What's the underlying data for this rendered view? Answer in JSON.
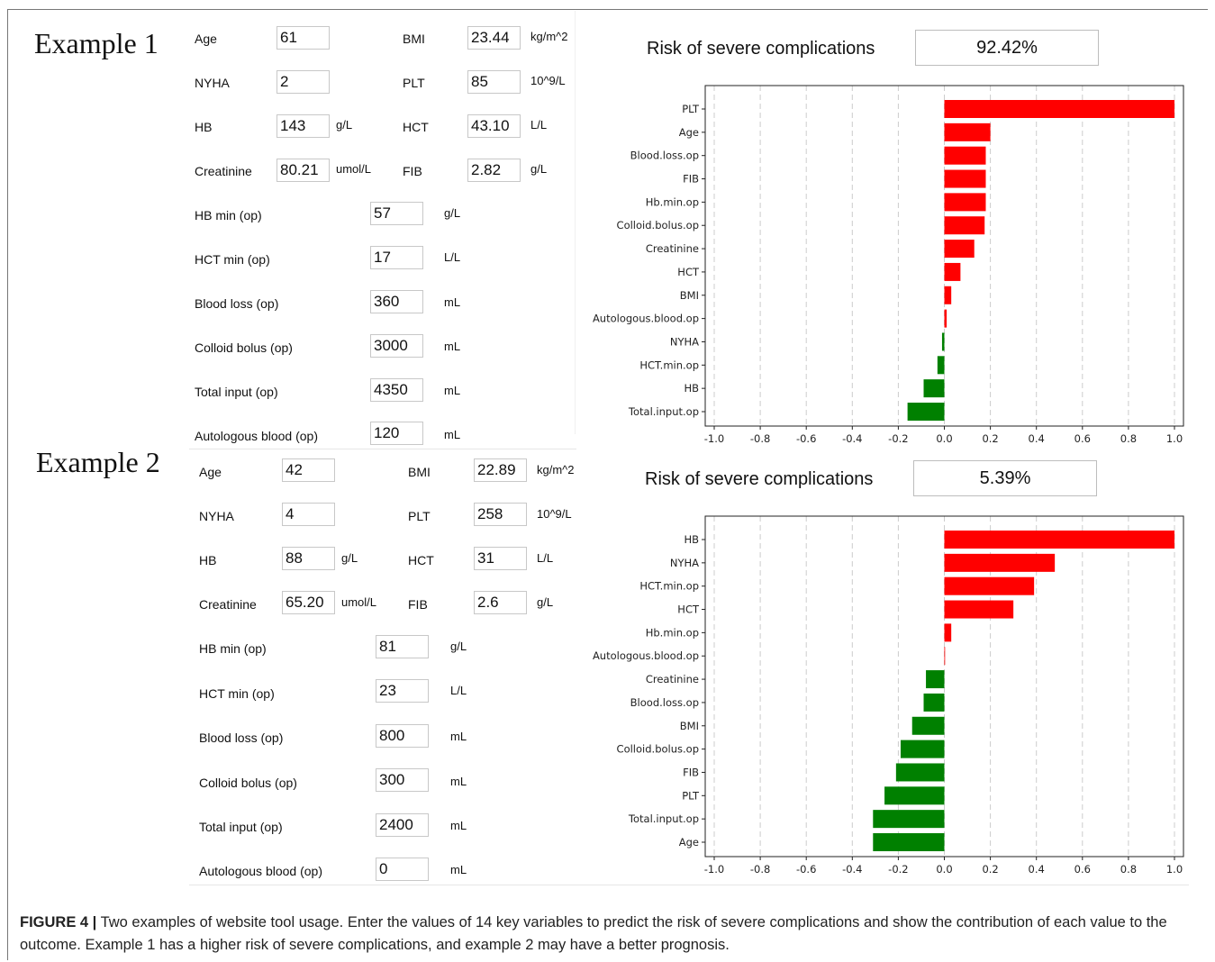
{
  "examples": [
    {
      "title": "Example 1",
      "fields": {
        "age": {
          "label": "Age",
          "value": "61"
        },
        "bmi": {
          "label": "BMI",
          "value": "23.44",
          "unit": "kg/m^2"
        },
        "nyha": {
          "label": "NYHA",
          "value": "2"
        },
        "plt": {
          "label": "PLT",
          "value": "85",
          "unit": "10^9/L"
        },
        "hb": {
          "label": "HB",
          "value": "143",
          "unit": "g/L"
        },
        "hct": {
          "label": "HCT",
          "value": "43.10",
          "unit": "L/L"
        },
        "creatinine": {
          "label": "Creatinine",
          "value": "80.21",
          "unit": "umol/L"
        },
        "fib": {
          "label": "FIB",
          "value": "2.82",
          "unit": "g/L"
        },
        "hb_min": {
          "label": "HB min (op)",
          "value": "57",
          "unit": "g/L"
        },
        "hct_min": {
          "label": "HCT min (op)",
          "value": "17",
          "unit": "L/L"
        },
        "blood_loss": {
          "label": "Blood loss (op)",
          "value": "360",
          "unit": "mL"
        },
        "colloid_bolus": {
          "label": "Colloid bolus (op)",
          "value": "3000",
          "unit": "mL"
        },
        "total_input": {
          "label": "Total input (op)",
          "value": "4350",
          "unit": "mL"
        },
        "autologous_blood": {
          "label": "Autologous blood (op)",
          "value": "120",
          "unit": "mL"
        }
      },
      "risk_label": "Risk of severe complications",
      "risk_value": "92.42%"
    },
    {
      "title": "Example 2",
      "fields": {
        "age": {
          "label": "Age",
          "value": "42"
        },
        "bmi": {
          "label": "BMI",
          "value": "22.89",
          "unit": "kg/m^2"
        },
        "nyha": {
          "label": "NYHA",
          "value": "4"
        },
        "plt": {
          "label": "PLT",
          "value": "258",
          "unit": "10^9/L"
        },
        "hb": {
          "label": "HB",
          "value": "88",
          "unit": "g/L"
        },
        "hct": {
          "label": "HCT",
          "value": "31",
          "unit": "L/L"
        },
        "creatinine": {
          "label": "Creatinine",
          "value": "65.20",
          "unit": "umol/L"
        },
        "fib": {
          "label": "FIB",
          "value": "2.6",
          "unit": "g/L"
        },
        "hb_min": {
          "label": "HB min (op)",
          "value": "81",
          "unit": "g/L"
        },
        "hct_min": {
          "label": "HCT min (op)",
          "value": "23",
          "unit": "L/L"
        },
        "blood_loss": {
          "label": "Blood loss (op)",
          "value": "800",
          "unit": "mL"
        },
        "colloid_bolus": {
          "label": "Colloid bolus (op)",
          "value": "300",
          "unit": "mL"
        },
        "total_input": {
          "label": "Total input (op)",
          "value": "2400",
          "unit": "mL"
        },
        "autologous_blood": {
          "label": "Autologous blood (op)",
          "value": "0",
          "unit": "mL"
        }
      },
      "risk_label": "Risk of severe complications",
      "risk_value": "5.39%"
    }
  ],
  "colors": {
    "positive": "#ff0000",
    "negative": "#008000"
  },
  "chart_data": [
    {
      "type": "bar",
      "orientation": "horizontal",
      "categories": [
        "PLT",
        "Age",
        "Blood.loss.op",
        "FIB",
        "Hb.min.op",
        "Colloid.bolus.op",
        "Creatinine",
        "HCT",
        "BMI",
        "Autologous.blood.op",
        "NYHA",
        "HCT.min.op",
        "HB",
        "Total.input.op"
      ],
      "values": [
        1.0,
        0.2,
        0.18,
        0.18,
        0.18,
        0.175,
        0.13,
        0.07,
        0.03,
        0.01,
        -0.01,
        -0.03,
        -0.09,
        -0.16
      ],
      "xlim": [
        -1.0,
        1.0
      ],
      "xticks": [
        "-1.0",
        "-0.8",
        "-0.6",
        "-0.4",
        "-0.2",
        "0.0",
        "0.2",
        "0.4",
        "0.6",
        "0.8",
        "1.0"
      ],
      "grid": "vertical dashed"
    },
    {
      "type": "bar",
      "orientation": "horizontal",
      "categories": [
        "HB",
        "NYHA",
        "HCT.min.op",
        "HCT",
        "Hb.min.op",
        "Autologous.blood.op",
        "Creatinine",
        "Blood.loss.op",
        "BMI",
        "Colloid.bolus.op",
        "FIB",
        "PLT",
        "Total.input.op",
        "Age"
      ],
      "values": [
        1.0,
        0.48,
        0.39,
        0.3,
        0.03,
        0.002,
        -0.08,
        -0.09,
        -0.14,
        -0.19,
        -0.21,
        -0.26,
        -0.31,
        -0.31
      ],
      "xlim": [
        -1.0,
        1.0
      ],
      "xticks": [
        "-1.0",
        "-0.8",
        "-0.6",
        "-0.4",
        "-0.2",
        "0.0",
        "0.2",
        "0.4",
        "0.6",
        "0.8",
        "1.0"
      ],
      "grid": "vertical dashed"
    }
  ],
  "caption": {
    "figure_label": "FIGURE 4 |",
    "text": " Two examples of website tool usage. Enter the values of 14 key variables to predict the risk of severe complications and show the contribution of each value to the outcome. Example 1 has a higher risk of severe complications, and example 2 may have a better prognosis."
  }
}
